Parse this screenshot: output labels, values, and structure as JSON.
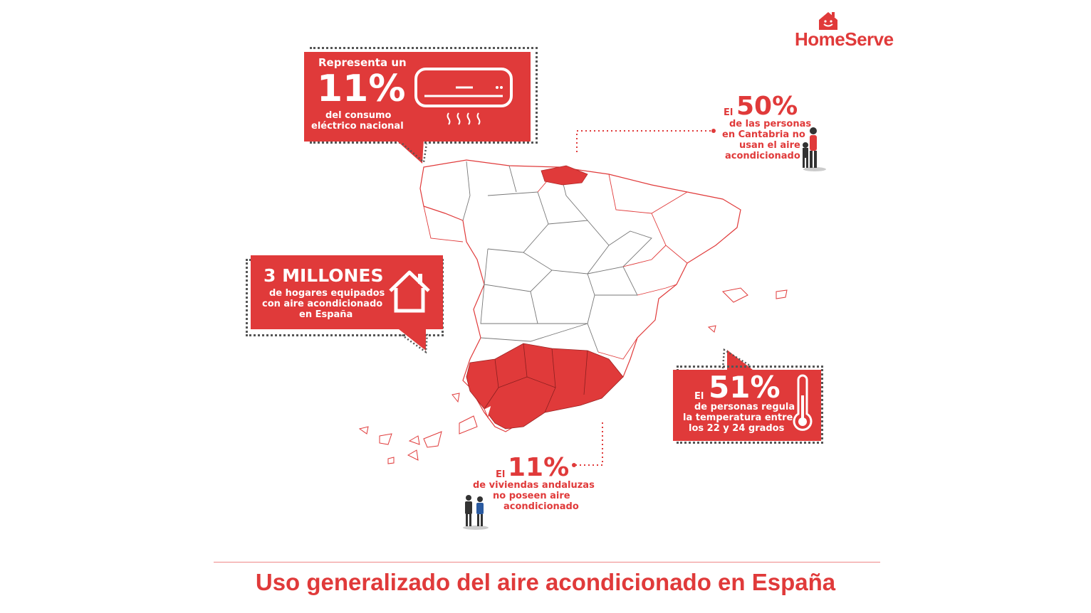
{
  "brand": {
    "name": "HomeServe",
    "accent": "#e03a3a",
    "icon": "house-smile-icon"
  },
  "footer": {
    "title": "Uso generalizado del aire acondicionado en España"
  },
  "callout_consumo": {
    "line1": "Representa un",
    "percent": "11%",
    "line2": "del consumo",
    "line3": "eléctrico nacional",
    "icon": "air-conditioner-icon"
  },
  "callout_hogares": {
    "headline": "3 MILLONES",
    "line1": "de hogares equipados",
    "line2": "con aire acondicionado",
    "line3": "en España",
    "icon": "house-outline-icon"
  },
  "callout_temperatura": {
    "prefix": "El",
    "percent": "51%",
    "line1": "de personas regula",
    "line2": "la temperatura entre",
    "line3": "los 22 y 24 grados",
    "icon": "thermometer-icon"
  },
  "stat_cantabria": {
    "prefix": "El",
    "percent": "50%",
    "line1": "de las personas",
    "line2": "en Cantabria no",
    "line3": "usan el aire",
    "line4": "acondicionado",
    "icon": "people-icon"
  },
  "stat_andalucia": {
    "prefix": "El",
    "percent": "11%",
    "line1": "de viviendas andaluzas",
    "line2": "no poseen aire",
    "line3": "acondicionado",
    "icon": "people-icon"
  },
  "map": {
    "highlighted": [
      "Cantabria",
      "Andalucía"
    ],
    "icon": "spain-provinces-map"
  }
}
